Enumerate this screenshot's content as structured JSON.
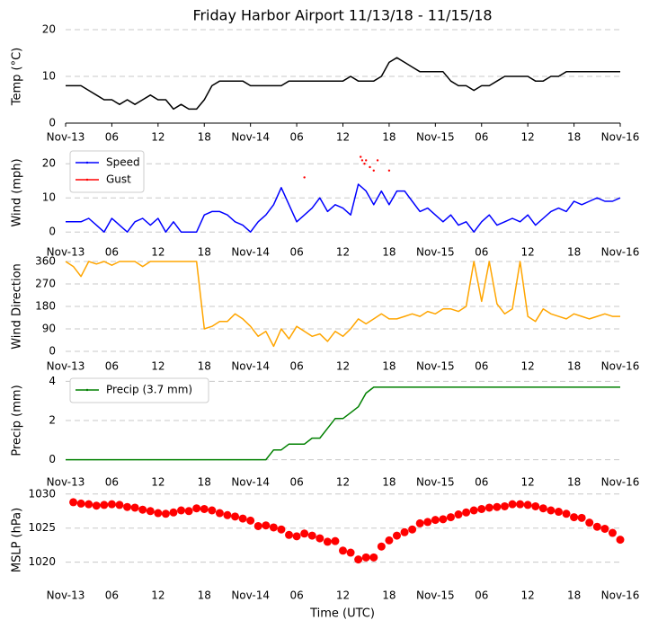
{
  "chart_data": [
    {
      "type": "line",
      "title": "Friday Harbor Airport 11/13/18 - 11/15/18",
      "ylabel": "Temp ($^\\circ$C)",
      "x": [
        0,
        1,
        2,
        3,
        4,
        5,
        6,
        7,
        8,
        9,
        10,
        11,
        12,
        13,
        14,
        15,
        16,
        17,
        18,
        19,
        20,
        21,
        22,
        23,
        24,
        25,
        26,
        27,
        28,
        29,
        30,
        31,
        32,
        33,
        34,
        35,
        36,
        37,
        38,
        39,
        40,
        41,
        42,
        43,
        44,
        45,
        46,
        47,
        48,
        49,
        50,
        51,
        52,
        53,
        54,
        55,
        56,
        57,
        58,
        59,
        60,
        61,
        62,
        63,
        64,
        65,
        66,
        67,
        68,
        69,
        70,
        71,
        72
      ],
      "values": [
        8,
        8,
        8,
        7,
        6,
        5,
        5,
        4,
        5,
        4,
        5,
        6,
        5,
        5,
        3,
        4,
        3,
        3,
        5,
        8,
        9,
        9,
        9,
        9,
        8,
        8,
        8,
        8,
        8,
        9,
        9,
        9,
        9,
        9,
        9,
        9,
        9,
        10,
        9,
        9,
        9,
        10,
        13,
        14,
        13,
        12,
        11,
        11,
        11,
        11,
        9,
        8,
        8,
        7,
        8,
        8,
        9,
        10,
        10,
        10,
        10,
        9,
        9,
        10,
        10,
        11,
        11,
        11,
        11,
        11,
        11,
        11,
        11
      ],
      "color": "#000000",
      "ylim": [
        0,
        20
      ],
      "yticks": [
        0,
        10,
        20
      ],
      "xlim": [
        0,
        72
      ],
      "xticks": [
        {
          "value": 0,
          "label": "Nov-13"
        },
        {
          "value": 6,
          "label": "06"
        },
        {
          "value": 12,
          "label": "12"
        },
        {
          "value": 18,
          "label": "18"
        },
        {
          "value": 24,
          "label": "Nov-14"
        },
        {
          "value": 30,
          "label": "06"
        },
        {
          "value": 36,
          "label": "12"
        },
        {
          "value": 42,
          "label": "18"
        },
        {
          "value": 48,
          "label": "Nov-15"
        },
        {
          "value": 54,
          "label": "06"
        },
        {
          "value": 60,
          "label": "12"
        },
        {
          "value": 66,
          "label": "18"
        },
        {
          "value": 72,
          "label": "Nov-16"
        }
      ],
      "grid": true
    },
    {
      "type": "line",
      "ylabel": "Wind (mph)",
      "legend": "upper left",
      "series": [
        {
          "name": "Speed",
          "color": "#0000ff",
          "marker": "dot",
          "x": [
            0,
            1,
            2,
            3,
            4,
            5,
            6,
            7,
            8,
            9,
            10,
            11,
            12,
            13,
            14,
            15,
            16,
            17,
            18,
            19,
            20,
            21,
            22,
            23,
            24,
            25,
            26,
            27,
            28,
            29,
            30,
            31,
            32,
            33,
            34,
            35,
            36,
            37,
            38,
            39,
            40,
            41,
            42,
            43,
            44,
            45,
            46,
            47,
            48,
            49,
            50,
            51,
            52,
            53,
            54,
            55,
            56,
            57,
            58,
            59,
            60,
            61,
            62,
            63,
            64,
            65,
            66,
            67,
            68,
            69,
            70,
            71,
            72
          ],
          "values": [
            3,
            3,
            3,
            4,
            2,
            0,
            4,
            2,
            0,
            3,
            4,
            2,
            4,
            0,
            3,
            0,
            0,
            0,
            5,
            6,
            6,
            5,
            3,
            2,
            0,
            3,
            5,
            8,
            13,
            8,
            3,
            5,
            7,
            10,
            6,
            8,
            7,
            5,
            14,
            12,
            8,
            12,
            8,
            12,
            12,
            9,
            6,
            7,
            5,
            3,
            5,
            2,
            3,
            0,
            3,
            5,
            2,
            3,
            4,
            3,
            5,
            2,
            4,
            6,
            7,
            6,
            9,
            8,
            9,
            10,
            9,
            9,
            10
          ]
        },
        {
          "name": "Gust",
          "color": "#ff0000",
          "marker": "dot",
          "linestyle": "none",
          "x": [
            31,
            38.3,
            38.5,
            38.8,
            39,
            39.5,
            40,
            40.5,
            42
          ],
          "values": [
            16,
            22,
            21,
            20,
            21,
            19,
            18,
            21,
            18
          ]
        }
      ],
      "ylim": [
        -1,
        24
      ],
      "yticks": [
        0,
        10,
        20
      ],
      "xlim": [
        0,
        72
      ],
      "xticks": [
        {
          "value": 0,
          "label": "Nov-13"
        },
        {
          "value": 6,
          "label": "06"
        },
        {
          "value": 12,
          "label": "12"
        },
        {
          "value": 18,
          "label": "18"
        },
        {
          "value": 24,
          "label": "Nov-14"
        },
        {
          "value": 30,
          "label": "06"
        },
        {
          "value": 36,
          "label": "12"
        },
        {
          "value": 42,
          "label": "18"
        },
        {
          "value": 48,
          "label": "Nov-15"
        },
        {
          "value": 54,
          "label": "06"
        },
        {
          "value": 60,
          "label": "12"
        },
        {
          "value": 66,
          "label": "18"
        },
        {
          "value": 72,
          "label": "Nov-16"
        }
      ],
      "grid": true
    },
    {
      "type": "line",
      "ylabel": "Wind Direction",
      "x": [
        0,
        1,
        2,
        3,
        4,
        5,
        6,
        7,
        8,
        9,
        10,
        11,
        12,
        13,
        14,
        15,
        16,
        17,
        18,
        19,
        20,
        21,
        22,
        23,
        24,
        25,
        26,
        27,
        28,
        29,
        30,
        31,
        32,
        33,
        34,
        35,
        36,
        37,
        38,
        39,
        40,
        41,
        42,
        43,
        44,
        45,
        46,
        47,
        48,
        49,
        50,
        51,
        52,
        53,
        54,
        55,
        56,
        57,
        58,
        59,
        60,
        61,
        62,
        63,
        64,
        65,
        66,
        67,
        68,
        69,
        70,
        71,
        72
      ],
      "values": [
        360,
        340,
        300,
        360,
        350,
        360,
        345,
        360,
        360,
        360,
        340,
        360,
        360,
        360,
        360,
        360,
        360,
        360,
        90,
        100,
        120,
        120,
        150,
        130,
        100,
        60,
        80,
        20,
        90,
        50,
        100,
        80,
        60,
        70,
        40,
        80,
        60,
        90,
        130,
        110,
        130,
        150,
        130,
        130,
        140,
        150,
        140,
        160,
        150,
        170,
        170,
        160,
        180,
        360,
        200,
        360,
        190,
        150,
        170,
        360,
        140,
        120,
        170,
        150,
        140,
        130,
        150,
        140,
        130,
        140,
        150,
        140,
        140
      ],
      "color": "#ffa500",
      "ylim": [
        0,
        360
      ],
      "yticks": [
        0,
        90,
        180,
        270,
        360
      ],
      "xlim": [
        0,
        72
      ],
      "xticks": [
        {
          "value": 0,
          "label": "Nov-13"
        },
        {
          "value": 6,
          "label": "06"
        },
        {
          "value": 12,
          "label": "12"
        },
        {
          "value": 18,
          "label": "18"
        },
        {
          "value": 24,
          "label": "Nov-14"
        },
        {
          "value": 30,
          "label": "06"
        },
        {
          "value": 36,
          "label": "12"
        },
        {
          "value": 42,
          "label": "18"
        },
        {
          "value": 48,
          "label": "Nov-15"
        },
        {
          "value": 54,
          "label": "06"
        },
        {
          "value": 60,
          "label": "12"
        },
        {
          "value": 66,
          "label": "18"
        },
        {
          "value": 72,
          "label": "Nov-16"
        }
      ],
      "grid": true
    },
    {
      "type": "line",
      "ylabel": "Precip (mm)",
      "legend": "upper left",
      "series": [
        {
          "name": "Precip (3.7 mm)",
          "color": "#008000",
          "marker": "dot",
          "x": [
            0,
            1,
            2,
            3,
            4,
            5,
            6,
            7,
            8,
            9,
            10,
            11,
            12,
            13,
            14,
            15,
            16,
            17,
            18,
            19,
            20,
            21,
            22,
            23,
            24,
            25,
            26,
            27,
            28,
            29,
            30,
            31,
            32,
            33,
            34,
            35,
            36,
            37,
            38,
            39,
            40,
            41,
            42,
            43,
            44,
            45,
            46,
            47,
            48,
            49,
            50,
            51,
            52,
            53,
            54,
            55,
            56,
            57,
            58,
            59,
            60,
            61,
            62,
            63,
            64,
            65,
            66,
            67,
            68,
            69,
            70,
            71,
            72
          ],
          "values": [
            0,
            0,
            0,
            0,
            0,
            0,
            0,
            0,
            0,
            0,
            0,
            0,
            0,
            0,
            0,
            0,
            0,
            0,
            0,
            0,
            0,
            0,
            0,
            0,
            0,
            0,
            0,
            0.5,
            0.5,
            0.8,
            0.8,
            0.8,
            1.1,
            1.1,
            1.6,
            2.1,
            2.1,
            2.4,
            2.7,
            3.4,
            3.7,
            3.7,
            3.7,
            3.7,
            3.7,
            3.7,
            3.7,
            3.7,
            3.7,
            3.7,
            3.7,
            3.7,
            3.7,
            3.7,
            3.7,
            3.7,
            3.7,
            3.7,
            3.7,
            3.7,
            3.7,
            3.7,
            3.7,
            3.7,
            3.7,
            3.7,
            3.7,
            3.7,
            3.7,
            3.7,
            3.7,
            3.7,
            3.7
          ]
        }
      ],
      "ylim": [
        -0.2,
        4.2
      ],
      "yticks": [
        0,
        2,
        4
      ],
      "xlim": [
        0,
        72
      ],
      "xticks": [
        {
          "value": 0,
          "label": "Nov-13"
        },
        {
          "value": 6,
          "label": "06"
        },
        {
          "value": 12,
          "label": "12"
        },
        {
          "value": 18,
          "label": "18"
        },
        {
          "value": 24,
          "label": "Nov-14"
        },
        {
          "value": 30,
          "label": "06"
        },
        {
          "value": 36,
          "label": "12"
        },
        {
          "value": 42,
          "label": "18"
        },
        {
          "value": 48,
          "label": "Nov-15"
        },
        {
          "value": 54,
          "label": "06"
        },
        {
          "value": 60,
          "label": "12"
        },
        {
          "value": 66,
          "label": "18"
        },
        {
          "value": 72,
          "label": "Nov-16"
        }
      ],
      "grid": true
    },
    {
      "type": "scatter",
      "ylabel": "MSLP (hPa)",
      "xlabel": "Time (UTC)",
      "x": [
        1,
        2,
        3,
        4,
        5,
        6,
        7,
        8,
        9,
        10,
        11,
        12,
        13,
        14,
        15,
        16,
        17,
        18,
        19,
        20,
        21,
        22,
        23,
        24,
        25,
        26,
        27,
        28,
        29,
        30,
        31,
        32,
        33,
        34,
        35,
        36,
        37,
        38,
        39,
        40,
        41,
        42,
        43,
        44,
        45,
        46,
        47,
        48,
        49,
        50,
        51,
        52,
        53,
        54,
        55,
        56,
        57,
        58,
        59,
        60,
        61,
        62,
        63,
        64,
        65,
        66,
        67,
        68,
        69,
        70,
        71,
        72
      ],
      "values": [
        1028.8,
        1028.6,
        1028.5,
        1028.3,
        1028.4,
        1028.5,
        1028.4,
        1028.1,
        1028.0,
        1027.7,
        1027.5,
        1027.2,
        1027.1,
        1027.3,
        1027.6,
        1027.5,
        1027.9,
        1027.8,
        1027.6,
        1027.2,
        1026.9,
        1026.7,
        1026.4,
        1026.1,
        1025.3,
        1025.4,
        1025.1,
        1024.8,
        1024.0,
        1023.8,
        1024.2,
        1023.9,
        1023.5,
        1023.0,
        1023.1,
        1021.7,
        1021.4,
        1020.4,
        1020.7,
        1020.7,
        1022.3,
        1023.2,
        1023.9,
        1024.4,
        1024.8,
        1025.7,
        1025.9,
        1026.2,
        1026.3,
        1026.6,
        1027.0,
        1027.3,
        1027.6,
        1027.8,
        1028.0,
        1028.1,
        1028.2,
        1028.5,
        1028.5,
        1028.4,
        1028.2,
        1027.9,
        1027.6,
        1027.4,
        1027.1,
        1026.6,
        1026.5,
        1025.8,
        1025.2,
        1024.9,
        1024.3,
        1023.3
      ],
      "color": "#ff0000",
      "ylim": [
        1016,
        1030.5
      ],
      "yticks": [
        1020,
        1025,
        1030
      ],
      "xlim": [
        0,
        72
      ],
      "xticks": [
        {
          "value": 0,
          "label": "Nov-13"
        },
        {
          "value": 6,
          "label": "06"
        },
        {
          "value": 12,
          "label": "12"
        },
        {
          "value": 18,
          "label": "18"
        },
        {
          "value": 24,
          "label": "Nov-14"
        },
        {
          "value": 30,
          "label": "06"
        },
        {
          "value": 36,
          "label": "12"
        },
        {
          "value": 42,
          "label": "18"
        },
        {
          "value": 48,
          "label": "Nov-15"
        },
        {
          "value": 54,
          "label": "06"
        },
        {
          "value": 60,
          "label": "12"
        },
        {
          "value": 66,
          "label": "18"
        },
        {
          "value": 72,
          "label": "Nov-16"
        }
      ],
      "grid": true
    }
  ]
}
